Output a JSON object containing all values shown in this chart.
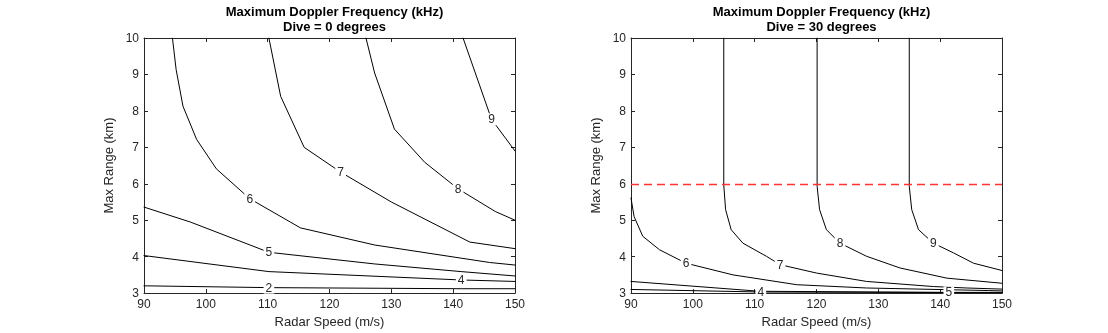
{
  "chart_data": [
    {
      "type": "line",
      "title": "Maximum Doppler Frequency (kHz)",
      "subtitle": "Dive = 0 degrees",
      "xlabel": "Radar Speed (m/s)",
      "ylabel": "Max Range (km)",
      "xlim": [
        90,
        150
      ],
      "xticks": [
        90,
        100,
        110,
        120,
        130,
        140,
        150
      ],
      "ylim": [
        3,
        10
      ],
      "yticks": [
        3,
        4,
        5,
        6,
        7,
        8,
        9,
        10
      ],
      "grid": false,
      "marker": "none",
      "line_style": "solid",
      "series": [
        {
          "name": "2",
          "color": "#000000",
          "x": [
            90,
            110.2,
            141.3,
            150
          ],
          "values": [
            3.2,
            3.15,
            3.12,
            3.12
          ]
        },
        {
          "name": "4",
          "color": "#000000",
          "x": [
            90,
            110.2,
            141.3,
            150
          ],
          "values": [
            4.03,
            3.59,
            3.36,
            3.32
          ]
        },
        {
          "name": "5",
          "color": "#000000",
          "x": [
            90,
            97.5,
            110.2,
            127.3,
            141.3,
            150
          ],
          "values": [
            5.36,
            4.95,
            4.12,
            3.8,
            3.59,
            3.47
          ]
        },
        {
          "name": "6",
          "color": "#000000",
          "x": [
            94.6,
            95.2,
            96.3,
            98.5,
            101.7,
            107.1,
            115.3,
            127.3,
            145.9,
            150
          ],
          "values": [
            10,
            9.13,
            8.13,
            7.22,
            6.41,
            5.59,
            4.79,
            4.32,
            3.84,
            3.77
          ]
        },
        {
          "name": "7",
          "color": "#000000",
          "x": [
            110.2,
            112.1,
            115.9,
            121.8,
            130,
            142.7,
            150
          ],
          "values": [
            10,
            8.4,
            7.0,
            6.32,
            5.5,
            4.4,
            4.22
          ]
        },
        {
          "name": "8",
          "color": "#000000",
          "x": [
            125.9,
            127.3,
            130.5,
            135.4,
            140.8,
            146.8,
            150
          ],
          "values": [
            10,
            9.04,
            7.5,
            6.59,
            5.86,
            5.24,
            5.0
          ]
        },
        {
          "name": "9",
          "color": "#000000",
          "x": [
            141.6,
            146.2,
            150
          ],
          "values": [
            10,
            7.77,
            6.9
          ]
        }
      ]
    },
    {
      "type": "line",
      "title": "Maximum Doppler Frequency (kHz)",
      "subtitle": "Dive = 30 degrees",
      "xlabel": "Radar Speed (m/s)",
      "ylabel": "Max Range (km)",
      "xlim": [
        90,
        150
      ],
      "xticks": [
        90,
        100,
        110,
        120,
        130,
        140,
        150
      ],
      "ylim": [
        3,
        10
      ],
      "yticks": [
        3,
        4,
        5,
        6,
        7,
        8,
        9,
        10
      ],
      "grid": false,
      "marker": "none",
      "line_style": "solid",
      "ref_lines": [
        {
          "axis": "y",
          "value": 6,
          "color": "#ff3333",
          "line_style": "dashed"
        }
      ],
      "series": [
        {
          "name": "4",
          "color": "#000000",
          "x": [
            90,
            111,
            150
          ],
          "values": [
            3.1,
            3.03,
            3.01
          ]
        },
        {
          "name": "5",
          "color": "#000000",
          "x": [
            90,
            110.8,
            141.4,
            150
          ],
          "values": [
            3.32,
            3.05,
            3.02,
            3.02
          ]
        },
        {
          "name": "6",
          "color": "#000000",
          "x": [
            90,
            90.5,
            91.9,
            94.6,
            98.9,
            106.5,
            116.8,
            128.1,
            147.8,
            150
          ],
          "values": [
            5.61,
            5.1,
            4.56,
            4.19,
            3.82,
            3.5,
            3.23,
            3.14,
            3.07,
            3.06
          ]
        },
        {
          "name": "7",
          "color": "#000000",
          "x": [
            105,
            105,
            105.3,
            106.2,
            108.1,
            111.9,
            114.1,
            120,
            128.1,
            138.9,
            144.3,
            150
          ],
          "values": [
            10,
            5.97,
            5.29,
            4.74,
            4.37,
            4.01,
            3.78,
            3.55,
            3.32,
            3.18,
            3.14,
            3.11
          ]
        },
        {
          "name": "8",
          "color": "#000000",
          "x": [
            120.1,
            120.1,
            120.5,
            121.6,
            123.8,
            128.1,
            133.5,
            141.1,
            150
          ],
          "values": [
            10,
            5.93,
            5.29,
            4.74,
            4.37,
            4.01,
            3.69,
            3.41,
            3.27
          ]
        },
        {
          "name": "9",
          "color": "#000000",
          "x": [
            135,
            135,
            135.4,
            136.5,
            138.9,
            142.2,
            145.4,
            150
          ],
          "values": [
            10,
            5.93,
            5.29,
            4.74,
            4.37,
            4.1,
            3.82,
            3.62
          ]
        }
      ]
    }
  ]
}
